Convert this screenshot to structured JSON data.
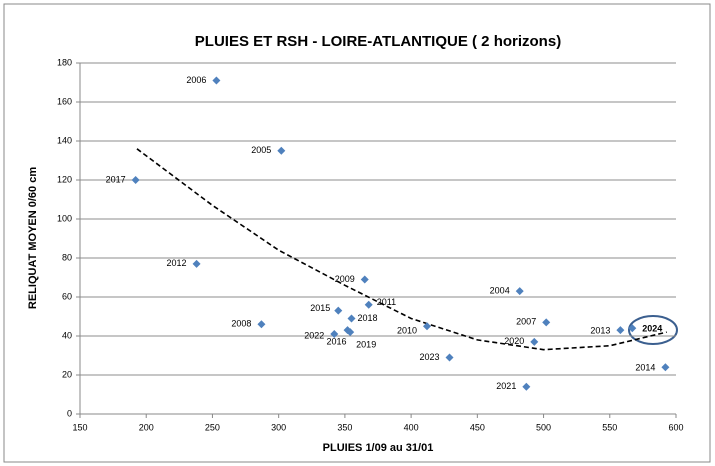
{
  "chart_data": {
    "type": "scatter",
    "title": "PLUIES ET RSH - LOIRE-ATLANTIQUE ( 2 horizons)",
    "x_label": "PLUIES 1/09 au 31/01",
    "y_label": "RELIQUAT MOYEN 0/60 cm",
    "labels": [
      "2006",
      "2005",
      "2017",
      "2012",
      "2008",
      "2009",
      "2015",
      "2011",
      "2018",
      "2022",
      "2016",
      "2019",
      "2010",
      "2023",
      "2004",
      "2007",
      "2020",
      "2021",
      "2013",
      "2024",
      "2014"
    ],
    "x": [
      253,
      302,
      192,
      238,
      287,
      365,
      345,
      368,
      355,
      342,
      352,
      354,
      412,
      429,
      482,
      502,
      493,
      487,
      558,
      567,
      592
    ],
    "values": [
      171,
      135,
      120,
      77,
      46,
      69,
      53,
      56,
      49,
      41,
      43,
      42,
      45,
      29,
      63,
      47,
      37,
      14,
      43,
      44,
      24
    ],
    "color": "#4f81bd",
    "trendline": {
      "x": [
        193,
        250,
        300,
        350,
        400,
        450,
        500,
        550,
        593
      ],
      "y": [
        136,
        107,
        84,
        66,
        49,
        38,
        33,
        35,
        42
      ]
    },
    "xlim": [
      150,
      600
    ],
    "xticks": [
      150,
      200,
      250,
      300,
      350,
      400,
      450,
      500,
      550,
      600
    ],
    "ylim": [
      0,
      180
    ],
    "yticks": [
      0,
      20,
      40,
      60,
      80,
      100,
      120,
      140,
      160,
      180
    ],
    "grid": true
  }
}
